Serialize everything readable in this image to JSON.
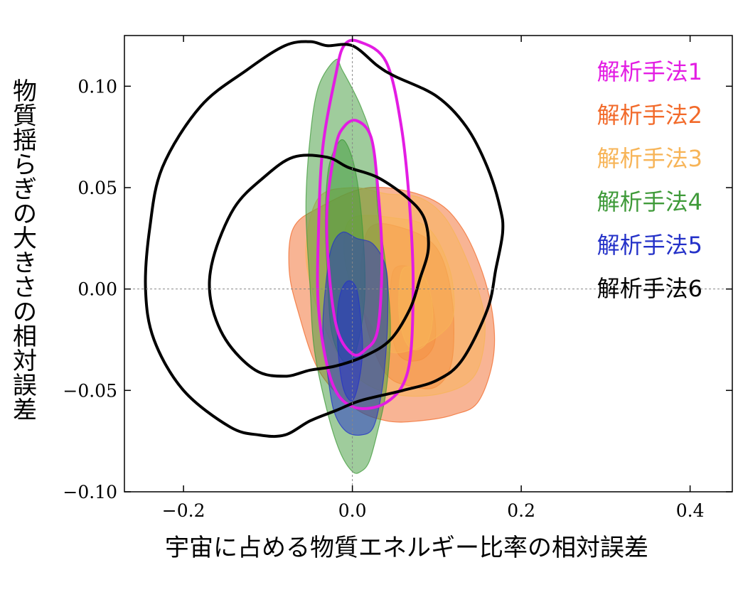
{
  "chart_data": {
    "type": "contour",
    "xlabel": "宇宙に占める物質エネルギー比率の相対誤差",
    "ylabel": "物質揺らぎの大きさの相対誤差",
    "xlim": [
      -0.27,
      0.45
    ],
    "ylim": [
      -0.1,
      0.125
    ],
    "x_ticks": [
      {
        "value": -0.2,
        "label": "−0.2"
      },
      {
        "value": 0.0,
        "label": "0.0"
      },
      {
        "value": 0.2,
        "label": "0.2"
      },
      {
        "value": 0.4,
        "label": "0.4"
      }
    ],
    "y_ticks": [
      {
        "value": -0.1,
        "label": "−0.10"
      },
      {
        "value": -0.05,
        "label": "−0.05"
      },
      {
        "value": 0.0,
        "label": "0.00"
      },
      {
        "value": 0.05,
        "label": "0.05"
      },
      {
        "value": 0.1,
        "label": "0.10"
      }
    ],
    "reference_lines": {
      "x": 0.0,
      "y": 0.0
    },
    "legend_position": "top-right",
    "series": [
      {
        "name": "解析手法1",
        "color": "#e31ce3",
        "style": "outline",
        "contours": [
          [
            [
              0.008,
              0.122
            ],
            [
              0.04,
              0.112
            ],
            [
              0.058,
              0.08
            ],
            [
              0.068,
              0.04
            ],
            [
              0.072,
              0.0
            ],
            [
              0.066,
              -0.04
            ],
            [
              0.04,
              -0.056
            ],
            [
              0.0,
              -0.058
            ],
            [
              -0.025,
              -0.045
            ],
            [
              -0.04,
              -0.01
            ],
            [
              -0.04,
              0.03
            ],
            [
              -0.035,
              0.07
            ],
            [
              -0.02,
              0.105
            ],
            [
              -0.01,
              0.12
            ]
          ],
          [
            [
              0.005,
              0.083
            ],
            [
              0.022,
              0.075
            ],
            [
              0.03,
              0.05
            ],
            [
              0.035,
              0.015
            ],
            [
              0.03,
              -0.02
            ],
            [
              0.015,
              -0.03
            ],
            [
              0.0,
              -0.032
            ],
            [
              -0.018,
              -0.02
            ],
            [
              -0.028,
              0.01
            ],
            [
              -0.03,
              0.04
            ],
            [
              -0.02,
              0.07
            ],
            [
              -0.01,
              0.08
            ]
          ]
        ]
      },
      {
        "name": "解析手法2",
        "color": "#f26a2a",
        "style": "filled",
        "contours": [
          [
            [
              -0.04,
              0.04
            ],
            [
              0.02,
              0.05
            ],
            [
              0.09,
              0.045
            ],
            [
              0.13,
              0.03
            ],
            [
              0.16,
              0.0
            ],
            [
              0.168,
              -0.03
            ],
            [
              0.15,
              -0.055
            ],
            [
              0.12,
              -0.062
            ],
            [
              0.08,
              -0.065
            ],
            [
              0.04,
              -0.065
            ],
            [
              0.0,
              -0.058
            ],
            [
              -0.04,
              -0.04
            ],
            [
              -0.065,
              -0.01
            ],
            [
              -0.075,
              0.01
            ],
            [
              -0.07,
              0.03
            ]
          ],
          [
            [
              0.02,
              0.03
            ],
            [
              0.06,
              0.03
            ],
            [
              0.1,
              0.02
            ],
            [
              0.118,
              -0.005
            ],
            [
              0.118,
              -0.035
            ],
            [
              0.1,
              -0.048
            ],
            [
              0.07,
              -0.048
            ],
            [
              0.04,
              -0.042
            ],
            [
              0.018,
              -0.02
            ],
            [
              0.01,
              0.005
            ]
          ],
          [
            [
              0.05,
              0.01
            ],
            [
              0.08,
              0.008
            ],
            [
              0.095,
              -0.008
            ],
            [
              0.098,
              -0.025
            ],
            [
              0.085,
              -0.034
            ],
            [
              0.063,
              -0.035
            ],
            [
              0.05,
              -0.028
            ],
            [
              0.045,
              -0.01
            ]
          ]
        ]
      },
      {
        "name": "解析手法3",
        "color": "#f7b457",
        "style": "filled",
        "contours": [
          [
            [
              -0.04,
              0.045
            ],
            [
              0.0,
              0.05
            ],
            [
              0.04,
              0.047
            ],
            [
              0.08,
              0.045
            ],
            [
              0.11,
              0.035
            ],
            [
              0.135,
              0.015
            ],
            [
              0.155,
              -0.01
            ],
            [
              0.155,
              -0.03
            ],
            [
              0.14,
              -0.045
            ],
            [
              0.1,
              -0.052
            ],
            [
              0.05,
              -0.052
            ],
            [
              0.01,
              -0.045
            ],
            [
              -0.02,
              -0.03
            ],
            [
              -0.045,
              -0.005
            ],
            [
              -0.055,
              0.02
            ]
          ],
          [
            [
              0.0,
              0.035
            ],
            [
              0.05,
              0.035
            ],
            [
              0.09,
              0.03
            ],
            [
              0.115,
              0.01
            ],
            [
              0.12,
              -0.012
            ],
            [
              0.105,
              -0.022
            ],
            [
              0.07,
              -0.03
            ],
            [
              0.04,
              -0.03
            ],
            [
              0.02,
              -0.015
            ],
            [
              0.0,
              0.0
            ],
            [
              -0.01,
              0.02
            ]
          ],
          [
            [
              0.06,
              0.01
            ],
            [
              0.085,
              0.006
            ],
            [
              0.095,
              -0.01
            ],
            [
              0.09,
              -0.025
            ],
            [
              0.075,
              -0.03
            ],
            [
              0.062,
              -0.025
            ],
            [
              0.055,
              -0.01
            ]
          ]
        ]
      },
      {
        "name": "解析手法4",
        "color": "#3f9a39",
        "style": "filled",
        "contours": [
          [
            [
              -0.02,
              0.113
            ],
            [
              -0.012,
              0.108
            ],
            [
              0.01,
              0.09
            ],
            [
              0.025,
              0.07
            ],
            [
              0.03,
              0.04
            ],
            [
              0.04,
              0.01
            ],
            [
              0.045,
              -0.02
            ],
            [
              0.04,
              -0.05
            ],
            [
              0.03,
              -0.07
            ],
            [
              0.02,
              -0.085
            ],
            [
              0.01,
              -0.09
            ],
            [
              0.0,
              -0.09
            ],
            [
              -0.015,
              -0.08
            ],
            [
              -0.03,
              -0.06
            ],
            [
              -0.045,
              -0.03
            ],
            [
              -0.05,
              0.0
            ],
            [
              -0.055,
              0.04
            ],
            [
              -0.05,
              0.075
            ],
            [
              -0.04,
              0.1
            ]
          ],
          [
            [
              -0.015,
              0.073
            ],
            [
              -0.005,
              0.07
            ],
            [
              0.005,
              0.055
            ],
            [
              0.012,
              0.03
            ],
            [
              0.015,
              0.0
            ],
            [
              0.01,
              -0.02
            ],
            [
              0.0,
              -0.035
            ],
            [
              -0.012,
              -0.035
            ],
            [
              -0.025,
              -0.02
            ],
            [
              -0.03,
              0.01
            ],
            [
              -0.032,
              0.035
            ],
            [
              -0.028,
              0.06
            ]
          ]
        ]
      },
      {
        "name": "解析手法5",
        "color": "#2431c8",
        "style": "filled",
        "contours": [
          [
            [
              -0.012,
              0.028
            ],
            [
              0.005,
              0.025
            ],
            [
              0.025,
              0.022
            ],
            [
              0.04,
              0.01
            ],
            [
              0.042,
              -0.01
            ],
            [
              0.04,
              -0.03
            ],
            [
              0.035,
              -0.05
            ],
            [
              0.025,
              -0.068
            ],
            [
              0.01,
              -0.072
            ],
            [
              -0.008,
              -0.07
            ],
            [
              -0.022,
              -0.06
            ],
            [
              -0.03,
              -0.04
            ],
            [
              -0.035,
              -0.02
            ],
            [
              -0.032,
              0.0
            ],
            [
              -0.025,
              0.02
            ]
          ],
          [
            [
              -0.005,
              0.004
            ],
            [
              0.005,
              0.0
            ],
            [
              0.01,
              -0.015
            ],
            [
              0.012,
              -0.03
            ],
            [
              0.008,
              -0.045
            ],
            [
              0.0,
              -0.055
            ],
            [
              -0.01,
              -0.05
            ],
            [
              -0.016,
              -0.035
            ],
            [
              -0.018,
              -0.015
            ],
            [
              -0.014,
              -0.002
            ]
          ]
        ]
      },
      {
        "name": "解析手法6",
        "color": "#000000",
        "style": "outline",
        "contours": [
          [
            [
              -0.03,
              0.12
            ],
            [
              0.0,
              0.12
            ],
            [
              0.03,
              0.11
            ],
            [
              0.05,
              0.105
            ],
            [
              0.1,
              0.095
            ],
            [
              0.135,
              0.08
            ],
            [
              0.16,
              0.06
            ],
            [
              0.175,
              0.04
            ],
            [
              0.178,
              0.028
            ],
            [
              0.17,
              0.01
            ],
            [
              0.16,
              -0.01
            ],
            [
              0.13,
              -0.035
            ],
            [
              0.1,
              -0.045
            ],
            [
              0.06,
              -0.05
            ],
            [
              0.01,
              -0.055
            ],
            [
              -0.02,
              -0.06
            ],
            [
              -0.05,
              -0.065
            ],
            [
              -0.08,
              -0.072
            ],
            [
              -0.11,
              -0.072
            ],
            [
              -0.145,
              -0.068
            ],
            [
              -0.2,
              -0.05
            ],
            [
              -0.235,
              -0.025
            ],
            [
              -0.245,
              0.0
            ],
            [
              -0.24,
              0.03
            ],
            [
              -0.225,
              0.06
            ],
            [
              -0.18,
              0.09
            ],
            [
              -0.125,
              0.108
            ],
            [
              -0.08,
              0.12
            ],
            [
              -0.05,
              0.122
            ]
          ],
          [
            [
              -0.07,
              0.065
            ],
            [
              -0.03,
              0.065
            ],
            [
              -0.005,
              0.06
            ],
            [
              0.03,
              0.055
            ],
            [
              0.065,
              0.045
            ],
            [
              0.085,
              0.035
            ],
            [
              0.09,
              0.02
            ],
            [
              0.08,
              0.005
            ],
            [
              0.068,
              -0.01
            ],
            [
              0.045,
              -0.025
            ],
            [
              0.015,
              -0.033
            ],
            [
              -0.02,
              -0.038
            ],
            [
              -0.05,
              -0.04
            ],
            [
              -0.08,
              -0.043
            ],
            [
              -0.115,
              -0.04
            ],
            [
              -0.15,
              -0.025
            ],
            [
              -0.168,
              -0.005
            ],
            [
              -0.165,
              0.015
            ],
            [
              -0.14,
              0.04
            ],
            [
              -0.105,
              0.055
            ]
          ]
        ]
      }
    ]
  }
}
